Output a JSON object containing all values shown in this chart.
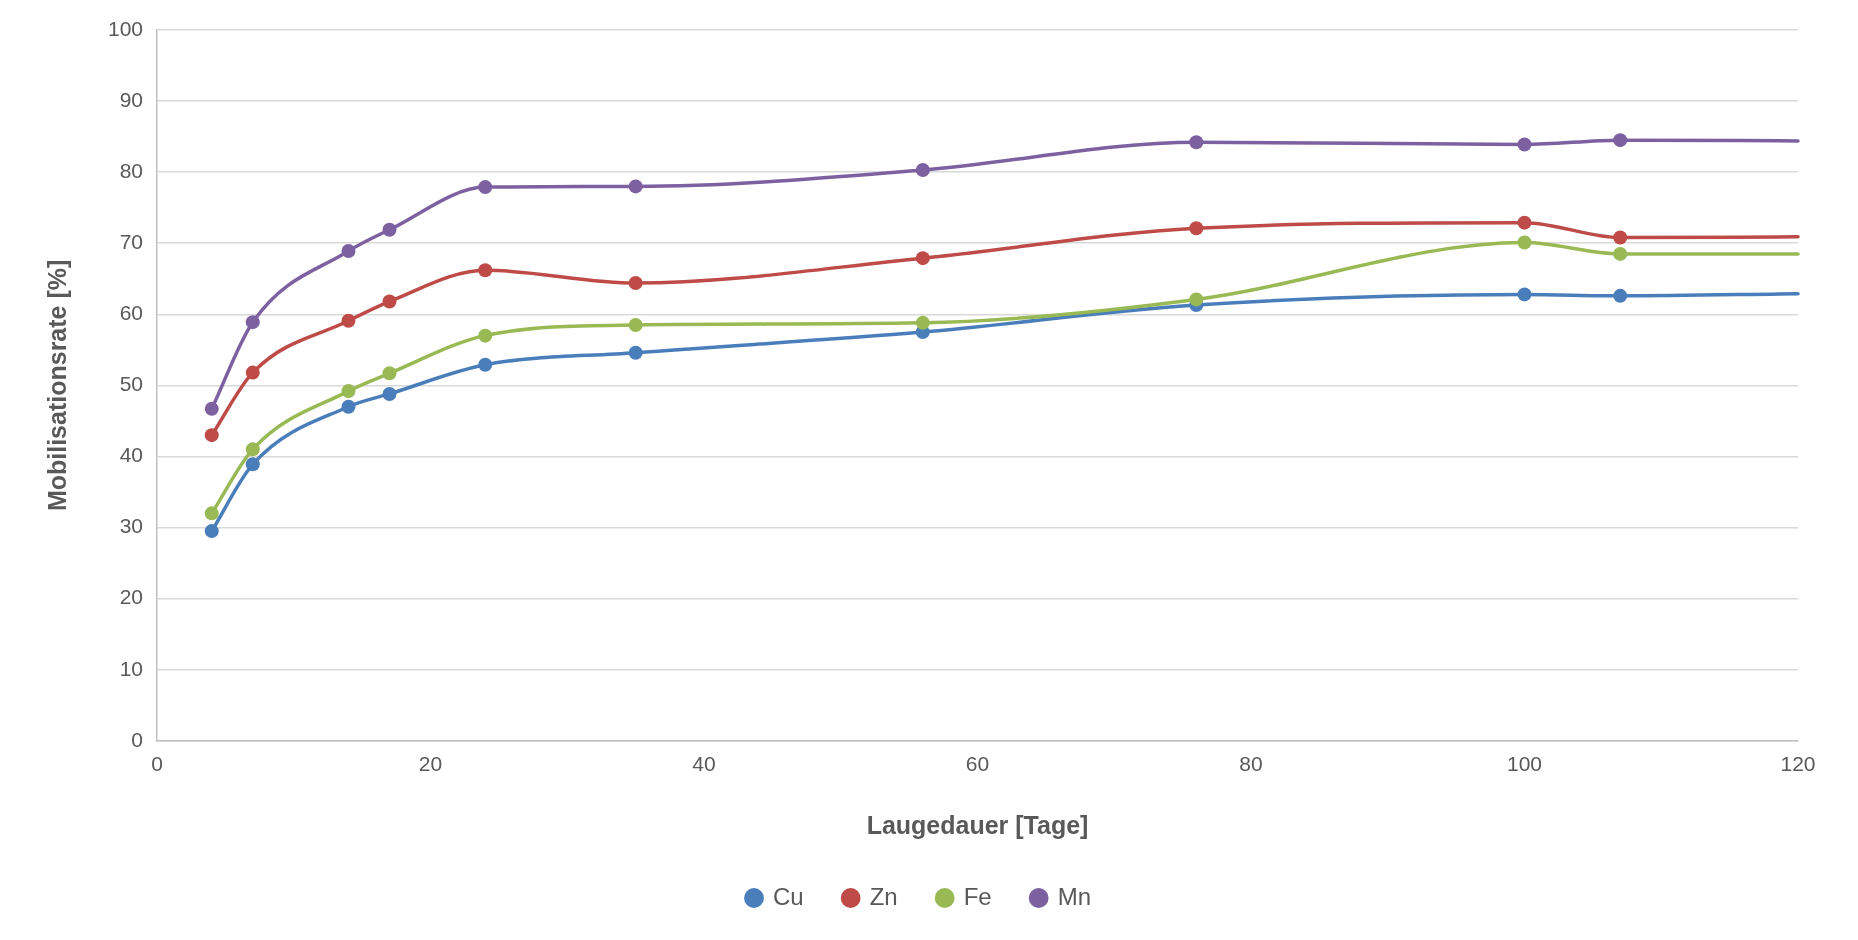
{
  "chart_data": {
    "type": "line",
    "xlabel": "Laugedauer [Tage]",
    "ylabel": "Mobilisationsrate [%]",
    "x": [
      4,
      7,
      14,
      17,
      24,
      35,
      56,
      76,
      100,
      107,
      120
    ],
    "series": [
      {
        "name": "Cu",
        "color": "#4a7ebb",
        "values": [
          29.5,
          38.9,
          47.0,
          48.8,
          52.9,
          54.6,
          57.5,
          61.3,
          62.8,
          62.6,
          62.9
        ]
      },
      {
        "name": "Zn",
        "color": "#be4b48",
        "values": [
          43.0,
          51.8,
          59.1,
          61.8,
          66.2,
          64.4,
          67.9,
          72.1,
          72.9,
          70.8,
          70.9
        ]
      },
      {
        "name": "Fe",
        "color": "#98b954",
        "values": [
          32.0,
          41.0,
          49.2,
          51.7,
          57.0,
          58.5,
          58.8,
          62.1,
          70.1,
          68.5,
          68.5
        ]
      },
      {
        "name": "Mn",
        "color": "#7d60a0",
        "values": [
          46.7,
          58.9,
          68.9,
          71.9,
          77.9,
          78.0,
          80.3,
          84.2,
          83.9,
          84.5,
          84.4
        ]
      }
    ],
    "xlim": [
      0,
      120
    ],
    "xticks": [
      0,
      20,
      40,
      60,
      80,
      100,
      120
    ],
    "ylim": [
      0,
      100
    ],
    "yticks": [
      0,
      10,
      20,
      30,
      40,
      50,
      60,
      70,
      80,
      90,
      100
    ],
    "grid": "y",
    "legend": "bottom",
    "marker": "circle",
    "line_style": "solid"
  }
}
